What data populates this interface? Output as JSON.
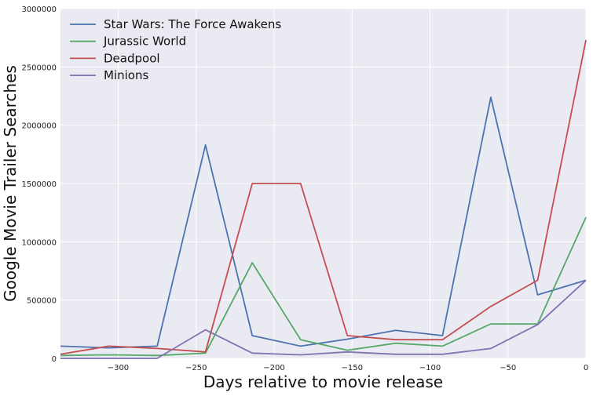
{
  "chart_data": {
    "type": "line",
    "title": "",
    "xlabel": "Days relative to movie release",
    "ylabel": "Google Movie Trailer Searches",
    "xlim": [
      -337,
      0
    ],
    "ylim": [
      0,
      3000000
    ],
    "x_ticks": [
      -300,
      -250,
      -200,
      -150,
      -100,
      -50,
      0
    ],
    "x_tick_labels": [
      "−300",
      "−250",
      "−200",
      "−150",
      "−100",
      "−50",
      "0"
    ],
    "y_ticks": [
      0,
      500000,
      1000000,
      1500000,
      2000000,
      2500000,
      3000000
    ],
    "y_tick_labels": [
      "0",
      "500000",
      "1000000",
      "1500000",
      "2000000",
      "2500000",
      "3000000"
    ],
    "grid": true,
    "legend_position": "top-left",
    "background": "#eaeaf2",
    "x": [
      -337,
      -306,
      -275,
      -244,
      -214,
      -183,
      -153,
      -122,
      -92,
      -61,
      -31,
      0
    ],
    "series": [
      {
        "name": "Star Wars: The Force Awakens",
        "color": "#4c72b0",
        "values": [
          105000,
          90000,
          105000,
          1830000,
          195000,
          105000,
          165000,
          240000,
          195000,
          2240000,
          545000,
          670000
        ]
      },
      {
        "name": "Jurassic World",
        "color": "#55a868",
        "values": [
          25000,
          30000,
          25000,
          45000,
          820000,
          160000,
          70000,
          130000,
          105000,
          295000,
          295000,
          1210000
        ]
      },
      {
        "name": "Deadpool",
        "color": "#c44e52",
        "values": [
          35000,
          105000,
          85000,
          55000,
          1500000,
          1500000,
          195000,
          160000,
          160000,
          445000,
          670000,
          2730000
        ]
      },
      {
        "name": "Minions",
        "color": "#8172b2",
        "values": [
          0,
          0,
          0,
          245000,
          45000,
          30000,
          55000,
          35000,
          35000,
          85000,
          290000,
          670000
        ]
      }
    ]
  }
}
